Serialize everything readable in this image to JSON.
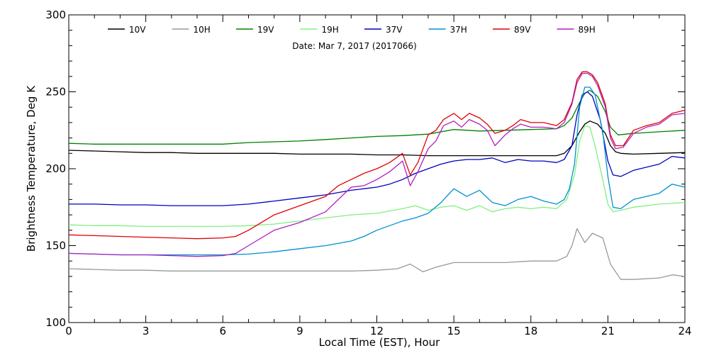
{
  "chart_data": {
    "type": "line",
    "title": "",
    "annotation": "Date: Mar  7, 2017 (2017066)",
    "xlabel": "Local Time (EST), Hour",
    "ylabel": "Brightness Temperature, Deg K",
    "xlim": [
      0,
      24
    ],
    "ylim": [
      100,
      300
    ],
    "xticks": [
      0,
      3,
      6,
      9,
      12,
      15,
      18,
      21,
      24
    ],
    "yticks": [
      100,
      150,
      200,
      250,
      300
    ],
    "grid": false,
    "legend_position": "top",
    "series": [
      {
        "name": "10V",
        "color": "#000000",
        "x": [
          0,
          1,
          2,
          3,
          4,
          5,
          6,
          7,
          8,
          9,
          10,
          11,
          12,
          13,
          14,
          15,
          16,
          17,
          18,
          19,
          19.3,
          19.6,
          19.9,
          20.1,
          20.3,
          20.6,
          20.9,
          21.1,
          21.3,
          21.5,
          22,
          23,
          24
        ],
        "y": [
          212,
          211.5,
          211,
          210.5,
          210.5,
          210,
          210,
          210,
          210,
          209.5,
          209.5,
          209.5,
          209,
          209,
          208.5,
          208.5,
          208.5,
          208.5,
          208.5,
          208.5,
          210,
          215,
          224,
          229,
          231,
          229,
          223,
          215,
          211,
          210,
          209.5,
          210,
          210.5
        ]
      },
      {
        "name": "10H",
        "color": "#999999",
        "x": [
          0,
          1,
          2,
          3,
          4,
          5,
          6,
          7,
          8,
          9,
          10,
          11,
          12,
          12.8,
          13.3,
          13.8,
          14.3,
          15,
          16,
          17,
          18,
          19,
          19.4,
          19.6,
          19.8,
          20.1,
          20.4,
          20.8,
          21.1,
          21.5,
          22,
          23,
          23.5,
          24
        ],
        "y": [
          135,
          134.5,
          134,
          134,
          133.5,
          133.5,
          133.5,
          133.5,
          133.5,
          133.5,
          133.5,
          133.5,
          134,
          135,
          138,
          133,
          136,
          139,
          139,
          139,
          140,
          140,
          143,
          150,
          161,
          152,
          158,
          155,
          138,
          128,
          128,
          129,
          131,
          130
        ]
      },
      {
        "name": "19V",
        "color": "#008000",
        "x": [
          0,
          1,
          2,
          3,
          4,
          5,
          6,
          7,
          8,
          9,
          10,
          11,
          12,
          13,
          14,
          15,
          16,
          17,
          18,
          19,
          19.3,
          19.6,
          19.9,
          20.1,
          20.3,
          20.6,
          20.9,
          21.1,
          21.4,
          22,
          23,
          24
        ],
        "y": [
          216.5,
          216,
          216,
          216,
          216,
          216,
          216,
          217,
          217.5,
          218,
          219,
          220,
          221,
          221.5,
          222.5,
          225.5,
          224.5,
          225,
          225.5,
          226,
          228,
          233,
          243,
          249,
          251,
          247,
          237,
          227,
          222,
          223,
          224,
          225
        ]
      },
      {
        "name": "19H",
        "color": "#80f080",
        "x": [
          0,
          1,
          2,
          3,
          4,
          5,
          6,
          7,
          8,
          9,
          10,
          11,
          12,
          13,
          13.5,
          14,
          14.5,
          15,
          15.5,
          16,
          16.5,
          17,
          17.5,
          18,
          18.5,
          19,
          19.4,
          19.7,
          19.9,
          20.1,
          20.3,
          20.5,
          20.8,
          21,
          21.2,
          21.5,
          22,
          23,
          24
        ],
        "y": [
          163.5,
          163,
          163,
          162.5,
          162.5,
          162.5,
          162.5,
          163,
          164,
          166,
          168,
          170,
          171,
          174,
          176,
          173,
          175,
          176,
          173,
          176,
          172,
          174,
          175,
          174,
          175,
          174,
          180,
          196,
          218,
          228,
          227,
          215,
          193,
          177,
          172,
          173,
          175,
          177,
          178
        ]
      },
      {
        "name": "37V",
        "color": "#0000c0",
        "x": [
          0,
          1,
          2,
          3,
          4,
          5,
          6,
          7,
          8,
          9,
          10,
          11,
          11.5,
          12,
          12.5,
          13,
          13.5,
          14,
          14.5,
          15,
          15.5,
          16,
          16.5,
          17,
          17.5,
          18,
          18.5,
          19,
          19.3,
          19.6,
          19.8,
          20,
          20.2,
          20.4,
          20.7,
          21,
          21.2,
          21.5,
          22,
          23,
          23.5,
          24
        ],
        "y": [
          177,
          177,
          176.5,
          176.5,
          176,
          176,
          176,
          177,
          179,
          181,
          183,
          186,
          187,
          188,
          190,
          193,
          197,
          200,
          203,
          205,
          206,
          206,
          207,
          204,
          206,
          205,
          205,
          204,
          206,
          215,
          235,
          248,
          250,
          247,
          232,
          205,
          196,
          195,
          199,
          203,
          208,
          207
        ]
      },
      {
        "name": "37H",
        "color": "#0090d0",
        "x": [
          0,
          1,
          2,
          3,
          4,
          5,
          6,
          7,
          8,
          9,
          10,
          11,
          11.5,
          12,
          12.5,
          13,
          13.5,
          14,
          14.5,
          15,
          15.5,
          16,
          16.5,
          17,
          17.5,
          18,
          18.5,
          19,
          19.3,
          19.5,
          19.7,
          19.9,
          20.1,
          20.3,
          20.5,
          20.8,
          21,
          21.2,
          21.5,
          22,
          23,
          23.5,
          24
        ],
        "y": [
          145,
          144.5,
          144,
          144,
          144,
          144,
          144,
          144.5,
          146,
          148,
          150,
          153,
          156,
          160,
          163,
          166,
          168,
          171,
          178,
          187,
          182,
          186,
          178,
          176,
          180,
          182,
          179,
          177,
          180,
          187,
          203,
          240,
          253,
          253,
          248,
          224,
          195,
          175,
          174,
          180,
          184,
          190,
          188
        ]
      },
      {
        "name": "89V",
        "color": "#e00000",
        "x": [
          0,
          1,
          2,
          3,
          4,
          5,
          6,
          6.5,
          7,
          8,
          9,
          10,
          10.5,
          11,
          11.5,
          12,
          12.5,
          13,
          13.3,
          13.6,
          14,
          14.3,
          14.6,
          15,
          15.3,
          15.6,
          16,
          16.3,
          16.6,
          17,
          17.3,
          17.6,
          18,
          18.5,
          19,
          19.3,
          19.6,
          19.8,
          20,
          20.2,
          20.4,
          20.6,
          20.9,
          21.1,
          21.3,
          21.6,
          22,
          22.5,
          23,
          23.5,
          24
        ],
        "y": [
          157,
          156.5,
          156,
          155.5,
          155,
          154.5,
          155,
          156,
          160,
          170,
          176,
          182,
          189,
          193,
          197,
          200,
          204,
          210,
          196,
          204,
          222,
          225,
          232,
          236,
          232,
          236,
          233,
          229,
          223,
          225,
          228,
          232,
          230,
          230,
          228,
          232,
          243,
          258,
          263,
          263,
          261,
          256,
          242,
          222,
          215,
          215,
          225,
          228,
          230,
          236,
          238
        ]
      },
      {
        "name": "89H",
        "color": "#b020c0",
        "x": [
          0,
          1,
          2,
          3,
          4,
          5,
          6,
          6.5,
          7,
          8,
          9,
          10,
          10.5,
          11,
          11.5,
          12,
          12.5,
          13,
          13.3,
          13.6,
          14,
          14.3,
          14.6,
          15,
          15.3,
          15.6,
          16,
          16.3,
          16.6,
          17,
          17.3,
          17.6,
          18,
          18.5,
          19,
          19.3,
          19.6,
          19.8,
          20,
          20.2,
          20.4,
          20.6,
          20.9,
          21.1,
          21.3,
          21.6,
          22,
          22.5,
          23,
          23.5,
          24
        ],
        "y": [
          145,
          144.5,
          144,
          144,
          143.5,
          143,
          143.5,
          145,
          150,
          160,
          165,
          172,
          180,
          188,
          189,
          193,
          198,
          205,
          189,
          198,
          213,
          218,
          228,
          231,
          227,
          232,
          229,
          225,
          215,
          222,
          226,
          229,
          227,
          227,
          226,
          230,
          242,
          256,
          262,
          262,
          260,
          254,
          240,
          220,
          213,
          214,
          223,
          227,
          229,
          235,
          236
        ]
      }
    ]
  }
}
